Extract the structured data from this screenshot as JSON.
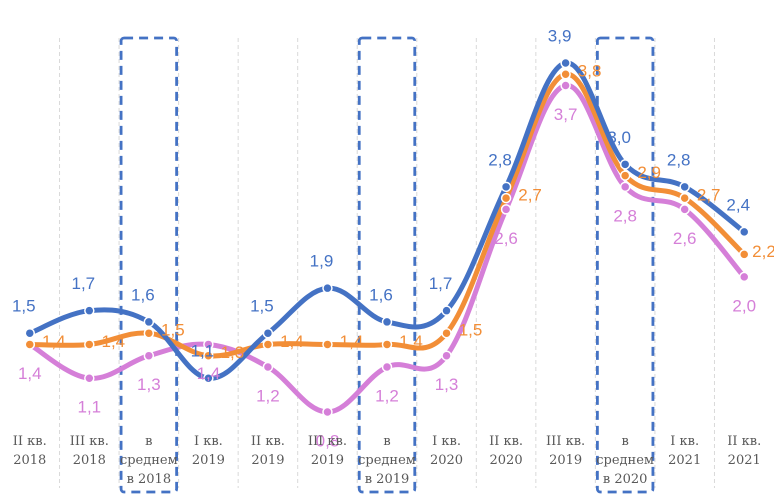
{
  "chart_data": {
    "type": "line",
    "categories": [
      [
        "II кв.",
        "2018"
      ],
      [
        "III кв.",
        "2018"
      ],
      [
        "в",
        "среднем",
        "в 2018"
      ],
      [
        "I кв.",
        "2019"
      ],
      [
        "II кв.",
        "2019"
      ],
      [
        "III кв.",
        "2019"
      ],
      [
        "в",
        "среднем",
        "в 2019"
      ],
      [
        "I кв.",
        "2020"
      ],
      [
        "II кв.",
        "2020"
      ],
      [
        "III кв.",
        "2019"
      ],
      [
        "в",
        "среднем",
        "в 2020"
      ],
      [
        "I кв.",
        "2021"
      ],
      [
        "II кв.",
        "2021"
      ]
    ],
    "highlighted_categories": [
      2,
      6,
      10
    ],
    "series": [
      {
        "color": "#4472c4",
        "values": [
          1.5,
          1.7,
          1.6,
          1.1,
          1.5,
          1.9,
          1.6,
          1.7,
          2.8,
          3.9,
          3.0,
          2.8,
          2.4
        ],
        "labels": [
          "1,5",
          "1,7",
          "1,6",
          "1,1",
          "1,5",
          "1,9",
          "1,6",
          "1,7",
          "2,8",
          "3,9",
          "3,0",
          "2,8",
          "2,4"
        ]
      },
      {
        "color": "#f28e37",
        "values": [
          1.4,
          1.4,
          1.5,
          1.3,
          1.4,
          1.4,
          1.4,
          1.5,
          2.7,
          3.8,
          2.9,
          2.7,
          2.2
        ],
        "labels": [
          "1,4",
          "1,4",
          "1,5",
          "1,3",
          "1,4",
          "1,4",
          "1,4",
          "1,5",
          "2,7",
          "3,8",
          "2,9",
          "2,7",
          "2,2"
        ]
      },
      {
        "color": "#d57fd8",
        "values": [
          1.4,
          1.1,
          1.3,
          1.4,
          1.2,
          0.8,
          1.2,
          1.3,
          2.6,
          3.7,
          2.8,
          2.6,
          2.0
        ],
        "labels": [
          "1,4",
          "1,1",
          "1,3",
          "1,4",
          "1,2",
          "0,8",
          "1,2",
          "1,3",
          "2,6",
          "3,7",
          "2,8",
          "2,6",
          "2,0"
        ]
      }
    ],
    "grid": "vertical-dashed",
    "legend": "none"
  }
}
